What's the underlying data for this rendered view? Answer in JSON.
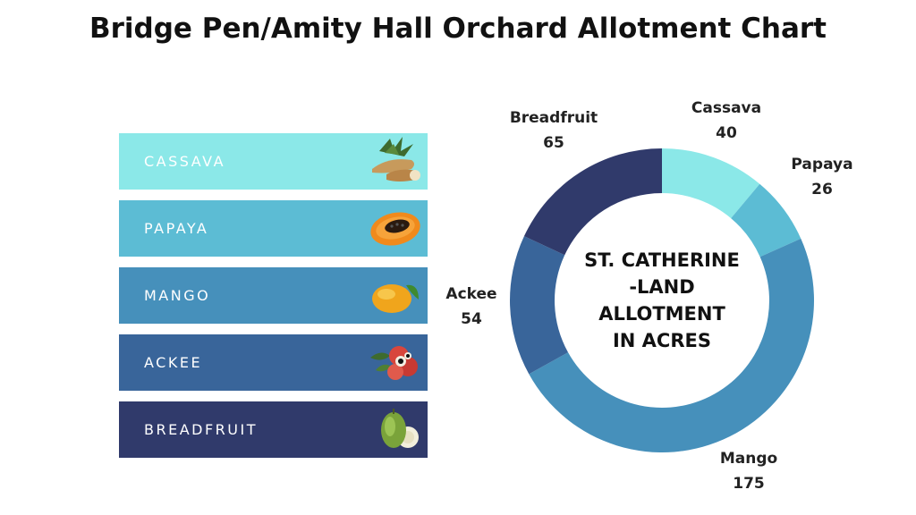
{
  "title": "Bridge Pen/Amity Hall Orchard Allotment Chart",
  "legend": {
    "items": [
      {
        "label": "CASSAVA",
        "color": "#8be8e8",
        "icon": "cassava-icon"
      },
      {
        "label": "PAPAYA",
        "color": "#5cbcd4",
        "icon": "papaya-icon"
      },
      {
        "label": "MANGO",
        "color": "#4690bb",
        "icon": "mango-icon"
      },
      {
        "label": "ACKEE",
        "color": "#39659a",
        "icon": "ackee-icon"
      },
      {
        "label": "BREADFRUIT",
        "color": "#303a6b",
        "icon": "breadfruit-icon"
      }
    ]
  },
  "chart_data": {
    "type": "pie",
    "variant": "donut",
    "categories": [
      "Cassava",
      "Papaya",
      "Mango",
      "Ackee",
      "Breadfruit"
    ],
    "values": [
      40,
      26,
      175,
      54,
      65
    ],
    "colors": [
      "#8be8e8",
      "#5cbcd4",
      "#4690bb",
      "#39659a",
      "#303a6b"
    ],
    "center_label": [
      "ST. CATHERINE",
      "-LAND",
      "ALLOTMENT",
      "IN ACRES"
    ],
    "title": "Bridge Pen/Amity Hall Orchard Allotment Chart"
  }
}
